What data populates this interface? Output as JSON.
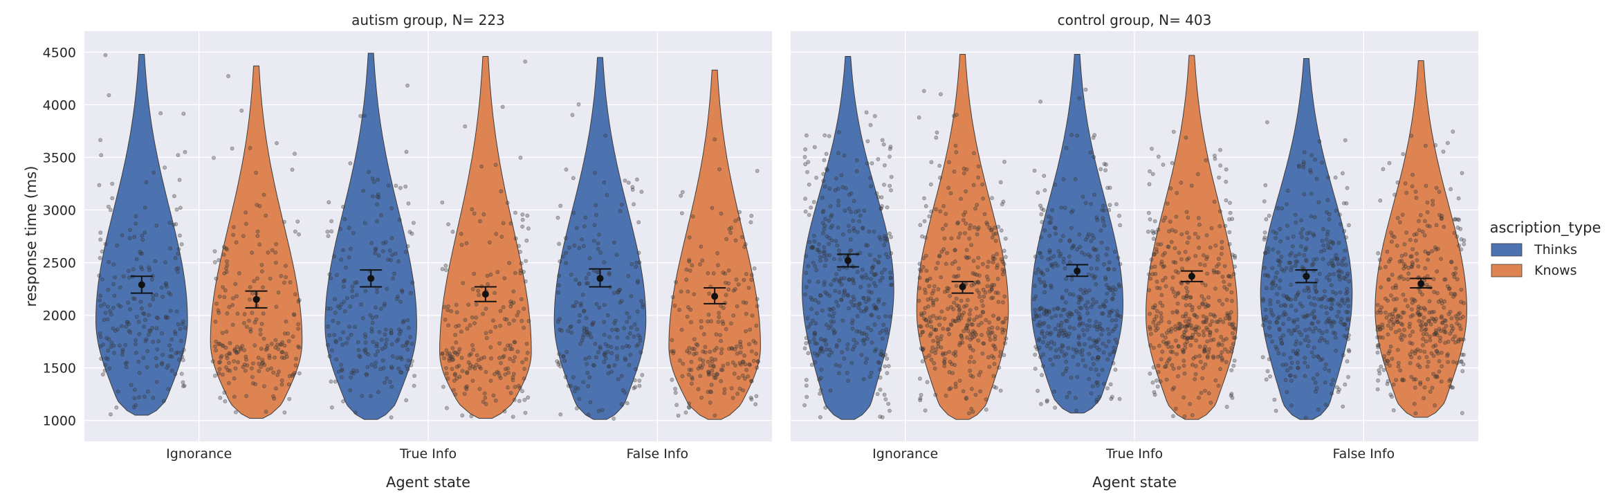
{
  "chart_data": {
    "type": "violin",
    "x_categories": [
      "Ignorance",
      "True Info",
      "False Info"
    ],
    "xlabel": "Agent state",
    "ylabel": "response time (ms)",
    "ylim": [
      800,
      4700
    ],
    "yticks": [
      1000,
      1500,
      2000,
      2500,
      3000,
      3500,
      4000,
      4500
    ],
    "grid": true,
    "legend": {
      "title": "ascription_type",
      "placement": "right",
      "entries": [
        {
          "label": "Thinks",
          "color": "#4c72b0"
        },
        {
          "label": "Knows",
          "color": "#dd8452"
        }
      ]
    },
    "panels": [
      {
        "title": "autism group, N= 223",
        "groups": [
          {
            "category": "Ignorance",
            "series": "Thinks",
            "mean": 2290,
            "ci": [
              2210,
              2370
            ],
            "min": 1050,
            "max": 4480,
            "mode": 1950,
            "n": 223
          },
          {
            "category": "Ignorance",
            "series": "Knows",
            "mean": 2150,
            "ci": [
              2070,
              2230
            ],
            "min": 1020,
            "max": 4370,
            "mode": 1750,
            "n": 223
          },
          {
            "category": "True Info",
            "series": "Thinks",
            "mean": 2350,
            "ci": [
              2270,
              2430
            ],
            "min": 1010,
            "max": 4490,
            "mode": 1900,
            "n": 223
          },
          {
            "category": "True Info",
            "series": "Knows",
            "mean": 2200,
            "ci": [
              2130,
              2270
            ],
            "min": 1020,
            "max": 4460,
            "mode": 1650,
            "n": 223
          },
          {
            "category": "False Info",
            "series": "Thinks",
            "mean": 2350,
            "ci": [
              2270,
              2440
            ],
            "min": 1010,
            "max": 4450,
            "mode": 1950,
            "n": 223
          },
          {
            "category": "False Info",
            "series": "Knows",
            "mean": 2180,
            "ci": [
              2110,
              2260
            ],
            "min": 1010,
            "max": 4330,
            "mode": 1700,
            "n": 223
          }
        ]
      },
      {
        "title": "control group, N= 403",
        "groups": [
          {
            "category": "Ignorance",
            "series": "Thinks",
            "mean": 2520,
            "ci": [
              2460,
              2580
            ],
            "min": 1010,
            "max": 4460,
            "mode": 2250,
            "n": 403
          },
          {
            "category": "Ignorance",
            "series": "Knows",
            "mean": 2270,
            "ci": [
              2210,
              2320
            ],
            "min": 1010,
            "max": 4480,
            "mode": 2050,
            "n": 403
          },
          {
            "category": "True Info",
            "series": "Thinks",
            "mean": 2420,
            "ci": [
              2370,
              2480
            ],
            "min": 1070,
            "max": 4480,
            "mode": 2100,
            "n": 403
          },
          {
            "category": "True Info",
            "series": "Knows",
            "mean": 2370,
            "ci": [
              2320,
              2420
            ],
            "min": 1010,
            "max": 4470,
            "mode": 2000,
            "n": 403
          },
          {
            "category": "False Info",
            "series": "Thinks",
            "mean": 2370,
            "ci": [
              2310,
              2430
            ],
            "min": 1010,
            "max": 4440,
            "mode": 2200,
            "n": 403
          },
          {
            "category": "False Info",
            "series": "Knows",
            "mean": 2300,
            "ci": [
              2260,
              2350
            ],
            "min": 1030,
            "max": 4420,
            "mode": 2050,
            "n": 403
          }
        ]
      }
    ]
  }
}
